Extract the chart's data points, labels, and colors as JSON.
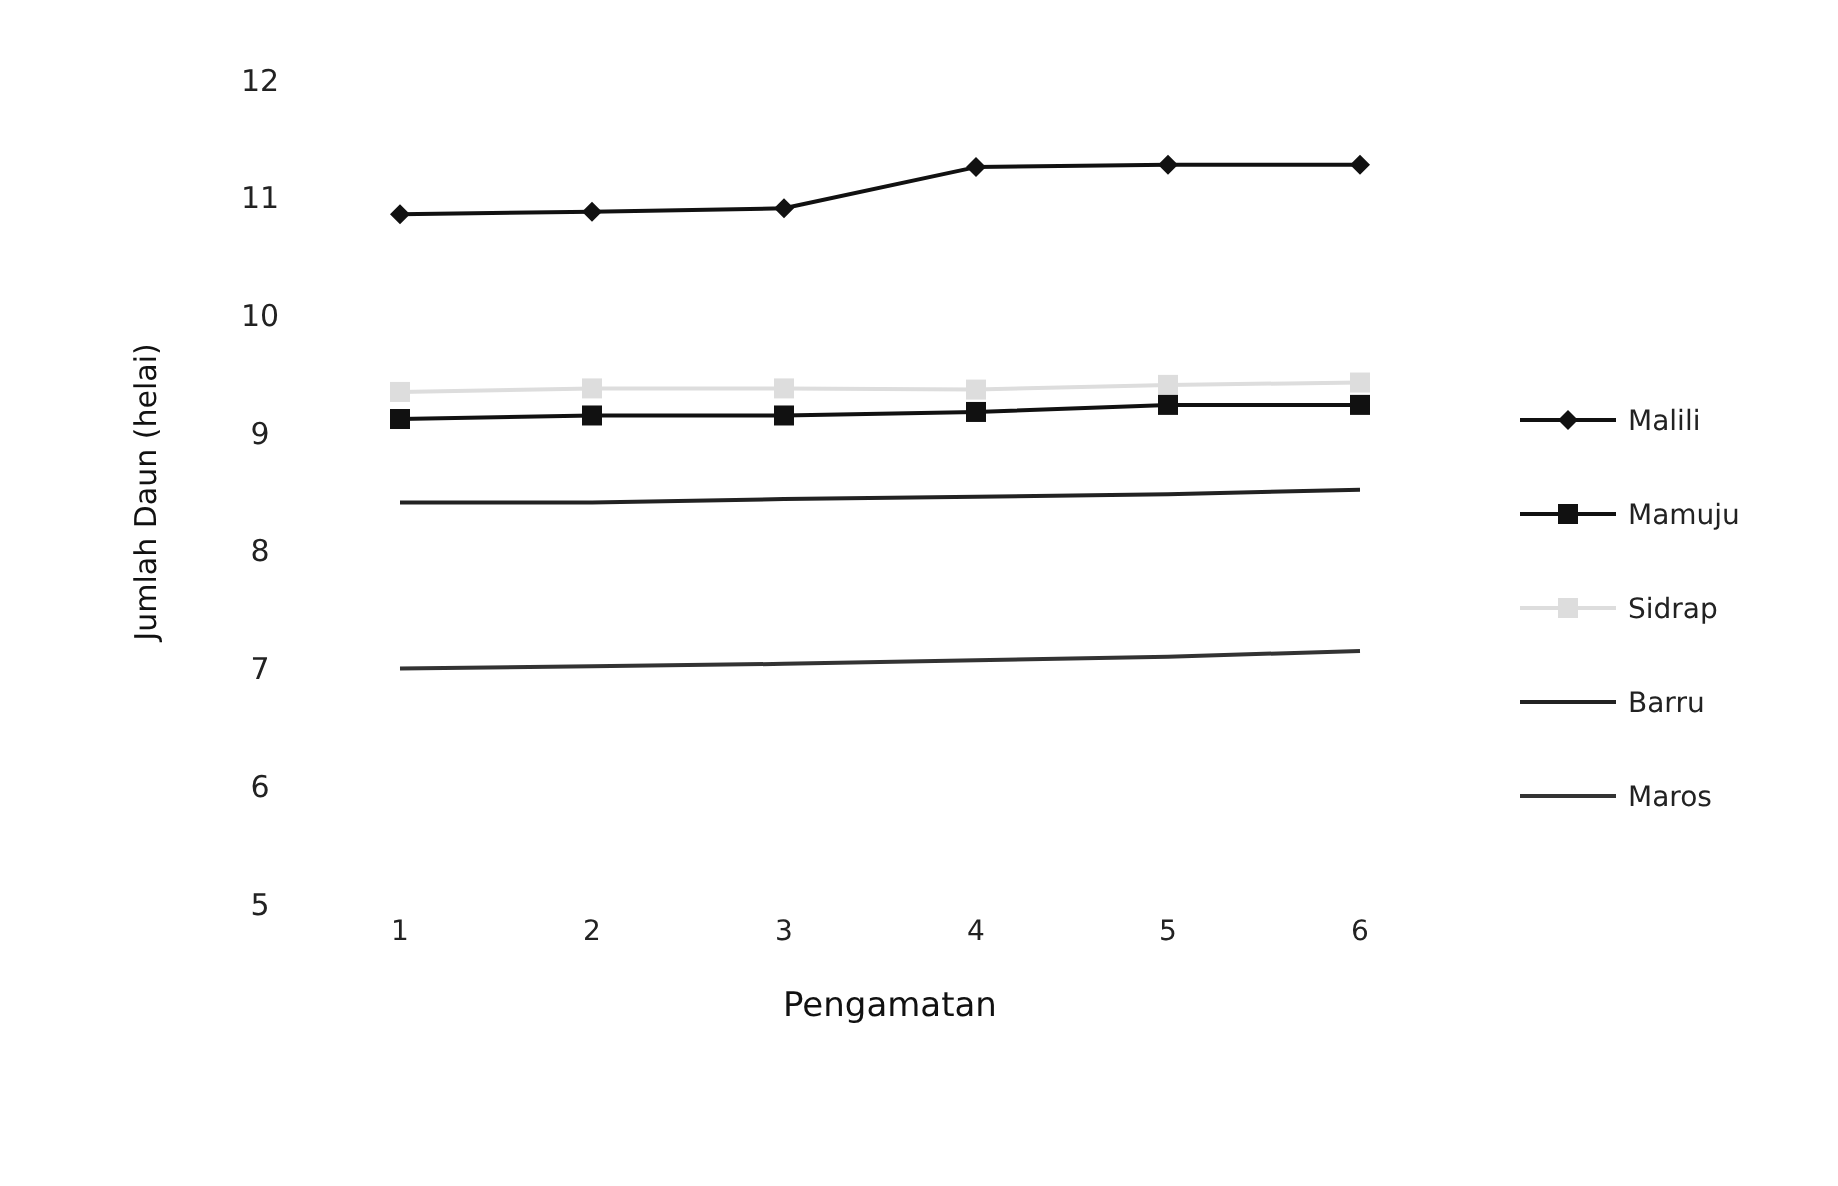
{
  "chart_data": {
    "type": "line",
    "xlabel": "Pengamatan",
    "ylabel": "Jumlah Daun (helai)",
    "categories": [
      "1",
      "2",
      "3",
      "4",
      "5",
      "6"
    ],
    "ylim": [
      5,
      12
    ],
    "yticks": [
      5,
      6,
      7,
      8,
      9,
      10,
      11,
      12
    ],
    "grid": false,
    "legend": "right",
    "series": [
      {
        "name": "Malili",
        "color": "#111111",
        "marker": "diamond",
        "values": [
          10.86,
          10.88,
          10.91,
          11.26,
          11.28,
          11.28
        ]
      },
      {
        "name": "Mamuju",
        "color": "#111111",
        "marker": "square",
        "values": [
          9.12,
          9.15,
          9.15,
          9.18,
          9.24,
          9.24
        ]
      },
      {
        "name": "Sidrap",
        "color": "#dddddd",
        "marker": "square",
        "values": [
          9.35,
          9.38,
          9.38,
          9.37,
          9.41,
          9.43
        ]
      },
      {
        "name": "Barru",
        "color": "#222222",
        "marker": "none",
        "values": [
          8.41,
          8.41,
          8.44,
          8.46,
          8.48,
          8.52
        ]
      },
      {
        "name": "Maros",
        "color": "#333333",
        "marker": "none",
        "values": [
          7.0,
          7.02,
          7.04,
          7.07,
          7.1,
          7.15
        ]
      }
    ]
  }
}
